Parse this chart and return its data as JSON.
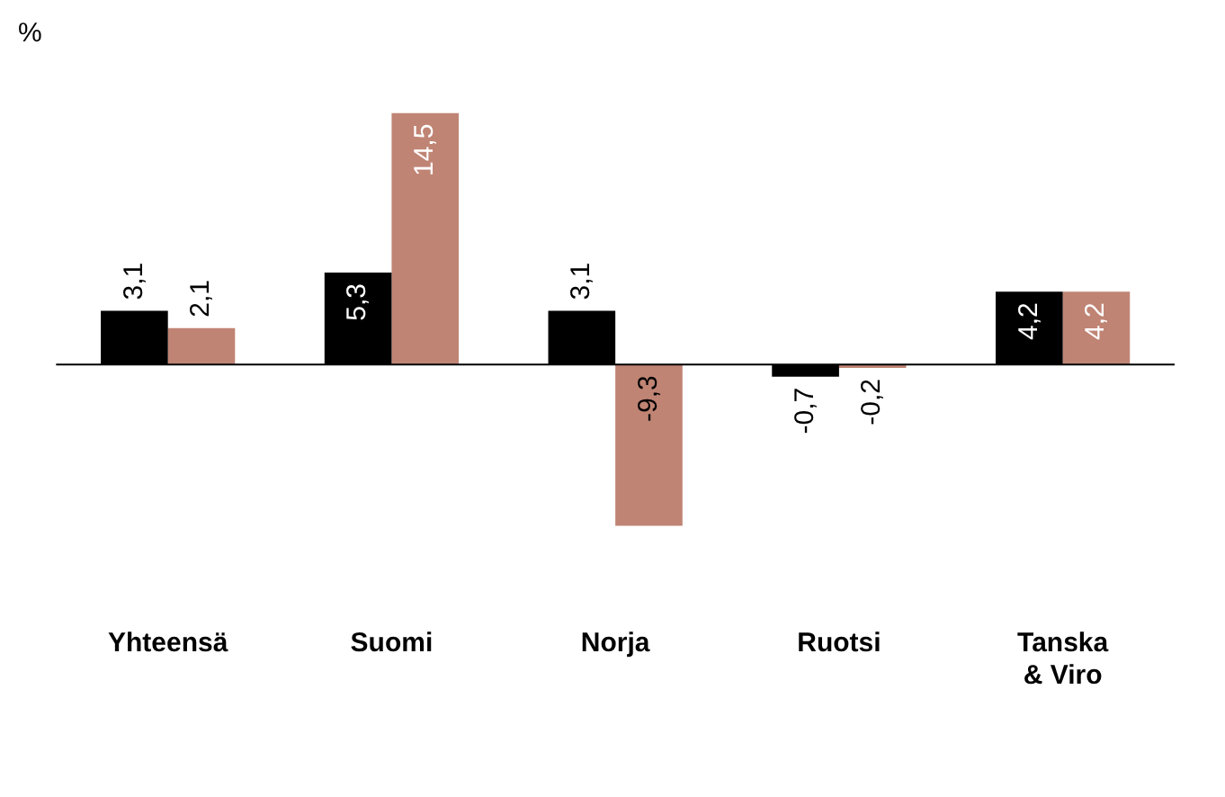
{
  "chart_data": {
    "type": "bar",
    "ylabel": "%",
    "categories": [
      "Yhteensä",
      "Suomi",
      "Norja",
      "Ruotsi",
      "Tanska & Viro"
    ],
    "series": [
      {
        "color": "#000000",
        "values": [
          3.1,
          5.3,
          3.1,
          -0.7,
          4.2
        ],
        "value_labels": [
          "3,1",
          "5,3",
          "3,1",
          "-0,7",
          "4,2"
        ]
      },
      {
        "color": "#c08474",
        "values": [
          2.1,
          14.5,
          -9.3,
          -0.2,
          4.2
        ],
        "value_labels": [
          "2,1",
          "14,5",
          "-9,3",
          "-0,2",
          "4,2"
        ]
      }
    ],
    "grid": false,
    "legend": false
  }
}
